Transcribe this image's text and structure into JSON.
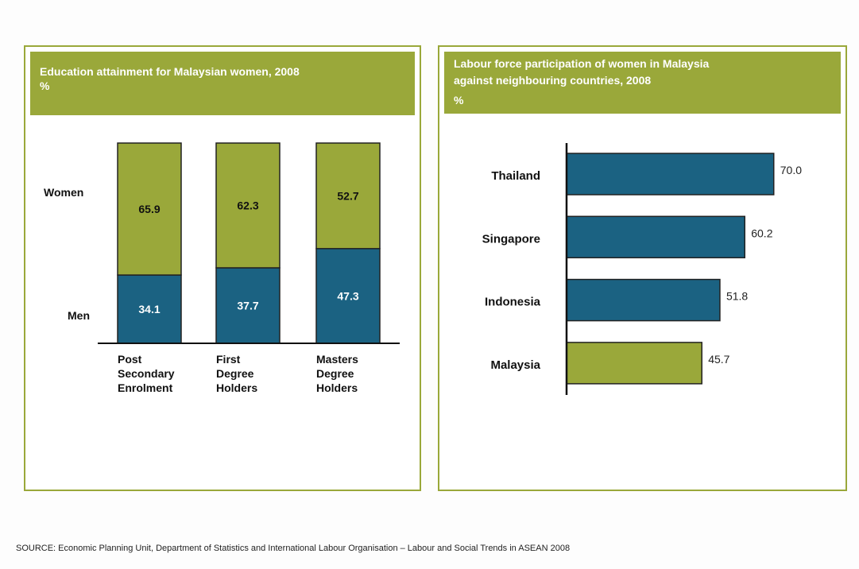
{
  "chart_data": [
    {
      "type": "stacked_bar",
      "title": "Education attainment for Malaysian women, 2008",
      "subtitle": "%",
      "categories": [
        "Post Secondary Enrolment",
        "First Degree Holders",
        "Masters Degree Holders"
      ],
      "series": [
        {
          "name": "Men",
          "color": "#1b6282",
          "values": [
            34.1,
            37.7,
            47.3
          ]
        },
        {
          "name": "Women",
          "color": "#9aa83a",
          "values": [
            65.9,
            62.3,
            52.7
          ]
        }
      ],
      "ylim": [
        0,
        100
      ]
    },
    {
      "type": "hbar",
      "title": "Labour force participation of women in Malaysia against neighbouring countries, 2008",
      "subtitle": "%",
      "categories": [
        "Thailand",
        "Singapore",
        "Indonesia",
        "Malaysia"
      ],
      "values": [
        70.0,
        60.2,
        51.8,
        45.7
      ],
      "value_labels": [
        "70.0",
        "60.2",
        "51.8",
        "45.7"
      ],
      "colors": [
        "#1b6282",
        "#1b6282",
        "#1b6282",
        "#9aa83a"
      ],
      "xlim": [
        0,
        80
      ]
    }
  ],
  "source": "SOURCE: Economic Planning Unit, Department of Statistics and International Labour Organisation – Labour and Social Trends in ASEAN 2008"
}
